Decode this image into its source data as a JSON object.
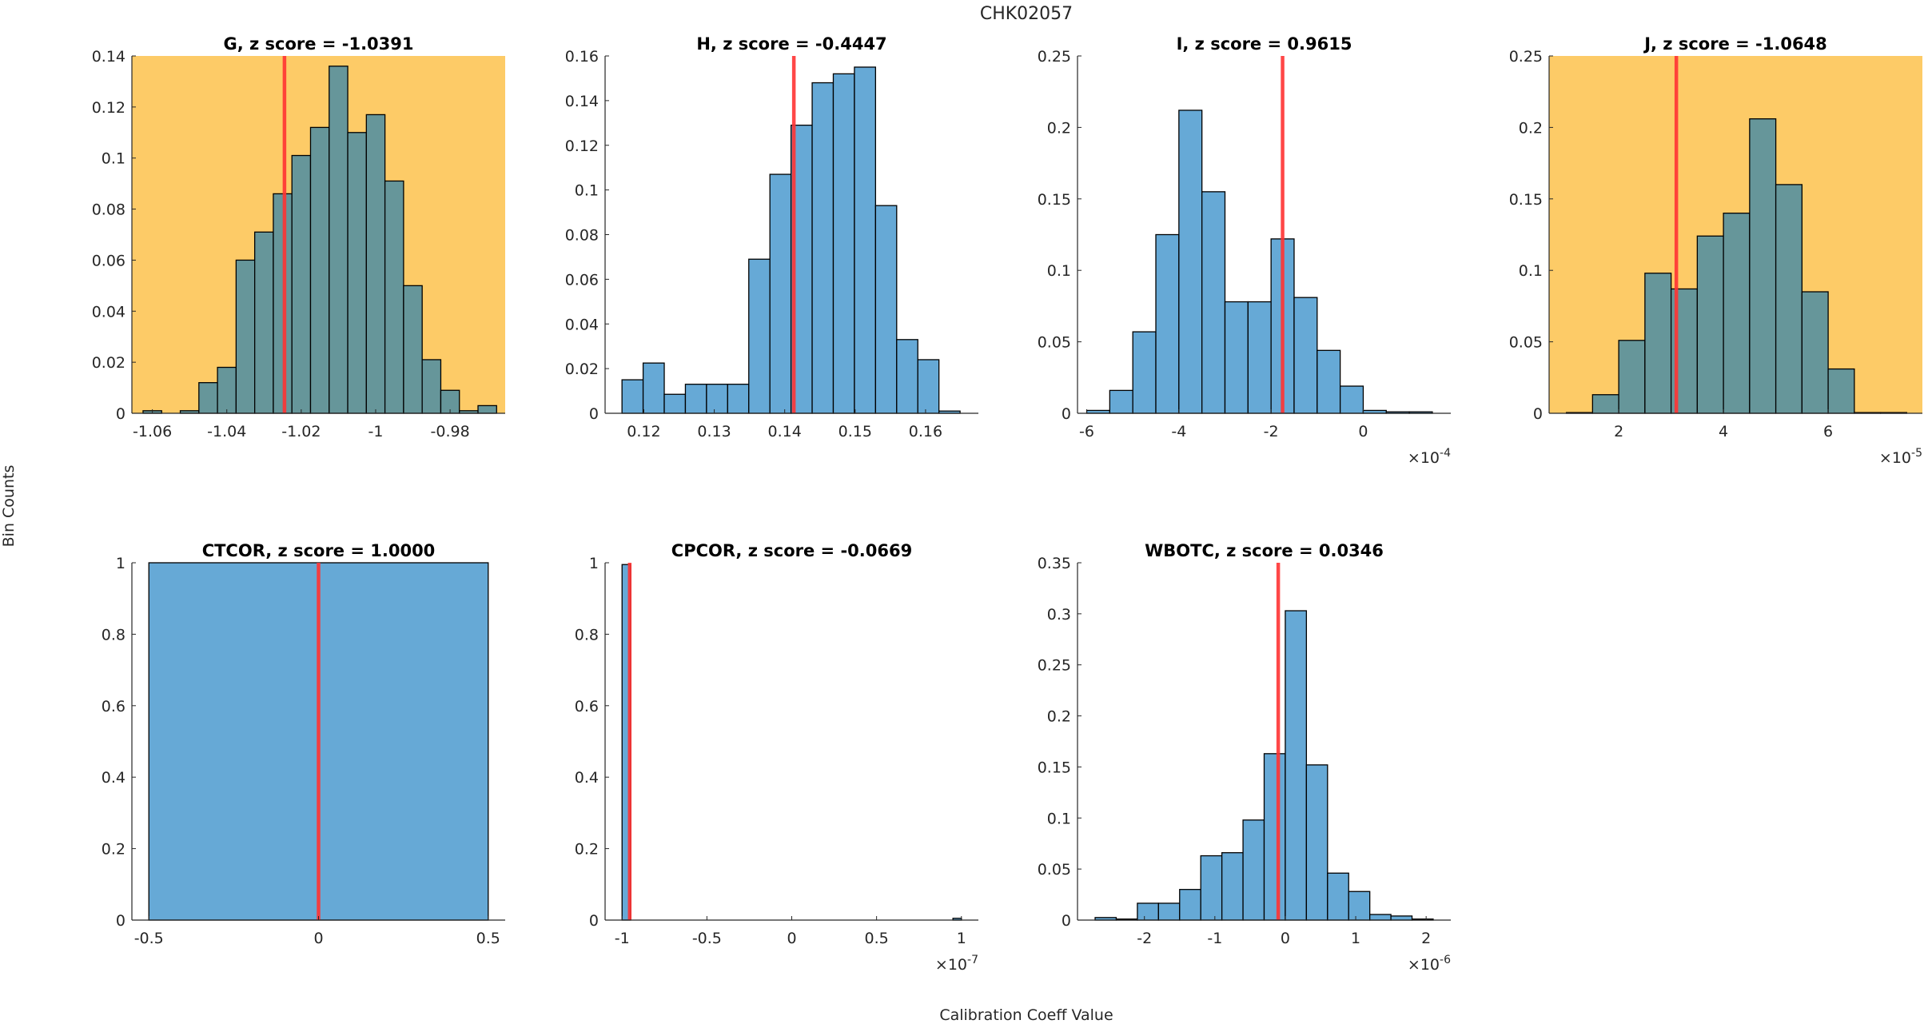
{
  "figure": {
    "title": "CHK02057",
    "ylabel": "Bin Counts",
    "xlabel": "Calibration Coeff Value",
    "colors": {
      "highlight_background": "#fdcb67",
      "bar_default": "#66a9d6",
      "bar_on_highlight": "#66969a",
      "marker_line": "#ff3333",
      "edge": "#000000"
    }
  },
  "chart_data": [
    {
      "type": "bar",
      "name": "G",
      "title": "G, z score = -1.0391",
      "z_score": -1.0391,
      "highlighted": true,
      "xlim": [
        -1.0655,
        -0.9652
      ],
      "ylim": [
        0,
        0.14
      ],
      "yticks": [
        0,
        0.02,
        0.04,
        0.06,
        0.08,
        0.1,
        0.12,
        0.14
      ],
      "ytick_labels": [
        "0",
        "0.02",
        "0.04",
        "0.06",
        "0.08",
        "0.1",
        "0.12",
        "0.14"
      ],
      "xticks": [
        -1.06,
        -1.04,
        -1.02,
        -1.0,
        -0.98
      ],
      "xtick_labels": [
        "-1.06",
        "-1.04",
        "-1.02",
        "-1",
        "-0.98"
      ],
      "x_exponent": "",
      "bin_edges": [
        -1.0625,
        -1.0575,
        -1.0525,
        -1.0475,
        -1.0425,
        -1.0375,
        -1.0325,
        -1.0275,
        -1.0225,
        -1.0175,
        -1.0125,
        -1.0075,
        -1.0025,
        -0.9975,
        -0.9925,
        -0.9875,
        -0.9825,
        -0.9775,
        -0.9725,
        -0.9675
      ],
      "values": [
        0.001,
        0.0,
        0.001,
        0.012,
        0.018,
        0.06,
        0.071,
        0.086,
        0.101,
        0.112,
        0.136,
        0.11,
        0.117,
        0.091,
        0.05,
        0.021,
        0.009,
        0.001,
        0.003
      ],
      "marker_x": -1.0245
    },
    {
      "type": "bar",
      "name": "H",
      "title": "H, z score = -0.4447",
      "z_score": -0.4447,
      "highlighted": false,
      "xlim": [
        0.1145,
        0.1675
      ],
      "ylim": [
        0,
        0.16
      ],
      "yticks": [
        0,
        0.02,
        0.04,
        0.06,
        0.08,
        0.1,
        0.12,
        0.14,
        0.16
      ],
      "ytick_labels": [
        "0",
        "0.02",
        "0.04",
        "0.06",
        "0.08",
        "0.1",
        "0.12",
        "0.14",
        "0.16"
      ],
      "xticks": [
        0.12,
        0.13,
        0.14,
        0.15,
        0.16
      ],
      "xtick_labels": [
        "0.12",
        "0.13",
        "0.14",
        "0.15",
        "0.16"
      ],
      "x_exponent": "",
      "bin_edges": [
        0.1169,
        0.1199,
        0.1229,
        0.1259,
        0.1289,
        0.1319,
        0.1349,
        0.1379,
        0.1409,
        0.1439,
        0.1469,
        0.1499,
        0.1529,
        0.1559,
        0.1589,
        0.1619,
        0.1649
      ],
      "values": [
        0.015,
        0.0225,
        0.0085,
        0.013,
        0.013,
        0.013,
        0.069,
        0.107,
        0.129,
        0.148,
        0.152,
        0.155,
        0.093,
        0.033,
        0.024,
        0.001
      ],
      "marker_x": 0.1413
    },
    {
      "type": "bar",
      "name": "I",
      "title": "I, z score = 0.9615",
      "z_score": 0.9615,
      "highlighted": false,
      "xlim": [
        -6.2,
        1.9
      ],
      "ylim": [
        0,
        0.25
      ],
      "yticks": [
        0,
        0.05,
        0.1,
        0.15,
        0.2,
        0.25
      ],
      "ytick_labels": [
        "0",
        "0.05",
        "0.1",
        "0.15",
        "0.2",
        "0.25"
      ],
      "xticks": [
        -6,
        -4,
        -2,
        0
      ],
      "xtick_labels": [
        "-6",
        "-4",
        "-2",
        "0"
      ],
      "x_exponent": "-4",
      "bin_edges": [
        -6.0,
        -5.5,
        -5.0,
        -4.5,
        -4.0,
        -3.5,
        -3.0,
        -2.5,
        -2.0,
        -1.5,
        -1.0,
        -0.5,
        0.0,
        0.5,
        1.0,
        1.5
      ],
      "values": [
        0.002,
        0.016,
        0.057,
        0.125,
        0.212,
        0.155,
        0.078,
        0.078,
        0.122,
        0.081,
        0.044,
        0.019,
        0.002,
        0.001,
        0.001
      ],
      "marker_x": -1.75
    },
    {
      "type": "bar",
      "name": "J",
      "title": "J, z score = -1.0648",
      "z_score": -1.0648,
      "highlighted": true,
      "xlim": [
        0.67,
        7.8
      ],
      "ylim": [
        0,
        0.25
      ],
      "yticks": [
        0,
        0.05,
        0.1,
        0.15,
        0.2,
        0.25
      ],
      "ytick_labels": [
        "0",
        "0.05",
        "0.1",
        "0.15",
        "0.2",
        "0.25"
      ],
      "xticks": [
        2,
        4,
        6
      ],
      "xtick_labels": [
        "2",
        "4",
        "6"
      ],
      "x_exponent": "-5",
      "bin_edges": [
        1.0,
        1.5,
        2.0,
        2.5,
        3.0,
        3.5,
        4.0,
        4.5,
        5.0,
        5.5,
        6.0,
        6.5,
        7.0,
        7.5
      ],
      "values": [
        0.0005,
        0.013,
        0.051,
        0.098,
        0.087,
        0.124,
        0.14,
        0.206,
        0.16,
        0.085,
        0.031,
        0.0005,
        0.0005
      ],
      "marker_x": 3.1
    },
    {
      "type": "bar",
      "name": "CTCOR",
      "title": "CTCOR, z score = 1.0000",
      "z_score": 1.0,
      "highlighted": false,
      "xlim": [
        -0.55,
        0.55
      ],
      "ylim": [
        0,
        1
      ],
      "yticks": [
        0,
        0.2,
        0.4,
        0.6,
        0.8,
        1
      ],
      "ytick_labels": [
        "0",
        "0.2",
        "0.4",
        "0.6",
        "0.8",
        "1"
      ],
      "xticks": [
        -0.5,
        0,
        0.5
      ],
      "xtick_labels": [
        "-0.5",
        "0",
        "0.5"
      ],
      "x_exponent": "",
      "bin_edges": [
        -0.5,
        0.5
      ],
      "values": [
        1.0
      ],
      "marker_x": 0.0
    },
    {
      "type": "bar",
      "name": "CPCOR",
      "title": "CPCOR, z score = -0.0669",
      "z_score": -0.0669,
      "highlighted": false,
      "xlim": [
        -1.1,
        1.1
      ],
      "ylim": [
        0,
        1
      ],
      "yticks": [
        0,
        0.2,
        0.4,
        0.6,
        0.8,
        1
      ],
      "ytick_labels": [
        "0",
        "0.2",
        "0.4",
        "0.6",
        "0.8",
        "1"
      ],
      "xticks": [
        -1,
        -0.5,
        0,
        0.5,
        1
      ],
      "xtick_labels": [
        "-1",
        "-0.5",
        "0",
        "0.5",
        "1"
      ],
      "x_exponent": "-7",
      "bin_edges": [
        -1.0,
        -0.95,
        0.95,
        1.0
      ],
      "values": [
        0.995,
        0.0,
        0.005
      ],
      "marker_x": -0.955
    },
    {
      "type": "bar",
      "name": "WBOTC",
      "title": "WBOTC, z score = 0.0346",
      "z_score": 0.0346,
      "highlighted": false,
      "xlim": [
        -2.95,
        2.35
      ],
      "ylim": [
        0,
        0.35
      ],
      "yticks": [
        0,
        0.05,
        0.1,
        0.15,
        0.2,
        0.25,
        0.3,
        0.35
      ],
      "ytick_labels": [
        "0",
        "0.05",
        "0.1",
        "0.15",
        "0.2",
        "0.25",
        "0.3",
        "0.35"
      ],
      "xticks": [
        -2,
        -1,
        0,
        1,
        2
      ],
      "xtick_labels": [
        "-2",
        "-1",
        "0",
        "1",
        "2"
      ],
      "x_exponent": "-6",
      "bin_edges": [
        -2.7,
        -2.4,
        -2.1,
        -1.8,
        -1.5,
        -1.2,
        -0.9,
        -0.6,
        -0.3,
        0.0,
        0.3,
        0.6,
        0.9,
        1.2,
        1.5,
        1.8,
        2.1
      ],
      "values": [
        0.0025,
        0.001,
        0.0165,
        0.0165,
        0.03,
        0.063,
        0.066,
        0.098,
        0.163,
        0.303,
        0.152,
        0.046,
        0.028,
        0.0055,
        0.004,
        0.001
      ],
      "marker_x": -0.1
    }
  ]
}
